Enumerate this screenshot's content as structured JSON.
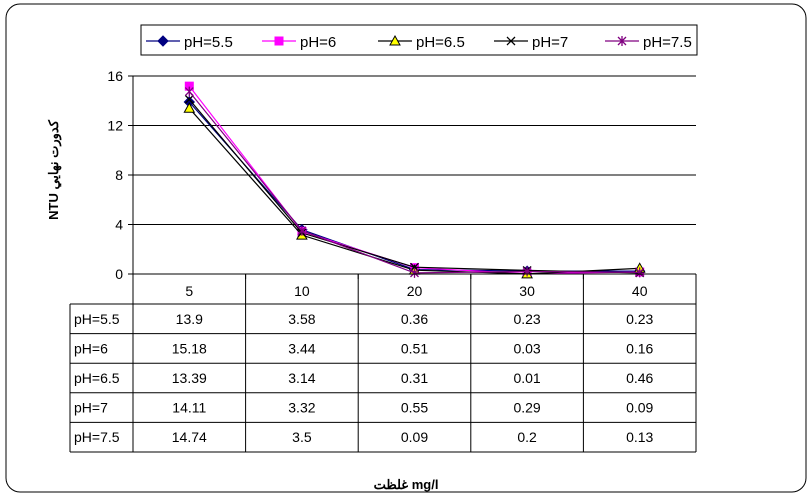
{
  "chart_data": {
    "type": "line",
    "categories": [
      "5",
      "10",
      "20",
      "30",
      "40"
    ],
    "ylabel": "NTU كدورت نهايي",
    "xlabel": "غلظت mg/l",
    "ylim": [
      0,
      16
    ],
    "yticks": [
      "0",
      "4",
      "8",
      "12",
      "16"
    ],
    "grid": true,
    "legend_position": "top",
    "series": [
      {
        "name": "pH=5.5",
        "values": [
          13.9,
          3.58,
          0.36,
          0.23,
          0.23
        ],
        "color": "#000080",
        "marker": "diamond"
      },
      {
        "name": "pH=6",
        "values": [
          15.18,
          3.44,
          0.51,
          0.03,
          0.16
        ],
        "color": "#FF00FF",
        "marker": "square"
      },
      {
        "name": "pH=6.5",
        "values": [
          13.39,
          3.14,
          0.31,
          0.01,
          0.46
        ],
        "color": "#000000",
        "marker": "triangle",
        "marker_fill": "#FFFF00"
      },
      {
        "name": "pH=7",
        "values": [
          14.11,
          3.32,
          0.55,
          0.29,
          0.09
        ],
        "color": "#000000",
        "marker": "x"
      },
      {
        "name": "pH=7.5",
        "values": [
          14.74,
          3.5,
          0.09,
          0.2,
          0.13
        ],
        "color": "#800080",
        "marker": "star"
      }
    ],
    "table": {
      "rows": [
        {
          "label": "pH=5.5",
          "cells": [
            "13.9",
            "3.58",
            "0.36",
            "0.23",
            "0.23"
          ]
        },
        {
          "label": "pH=6",
          "cells": [
            "15.18",
            "3.44",
            "0.51",
            "0.03",
            "0.16"
          ]
        },
        {
          "label": "pH=6.5",
          "cells": [
            "13.39",
            "3.14",
            "0.31",
            "0.01",
            "0.46"
          ]
        },
        {
          "label": "pH=7",
          "cells": [
            "14.11",
            "3.32",
            "0.55",
            "0.29",
            "0.09"
          ]
        },
        {
          "label": "pH=7.5",
          "cells": [
            "14.74",
            "3.5",
            "0.09",
            "0.2",
            "0.13"
          ]
        }
      ]
    }
  }
}
